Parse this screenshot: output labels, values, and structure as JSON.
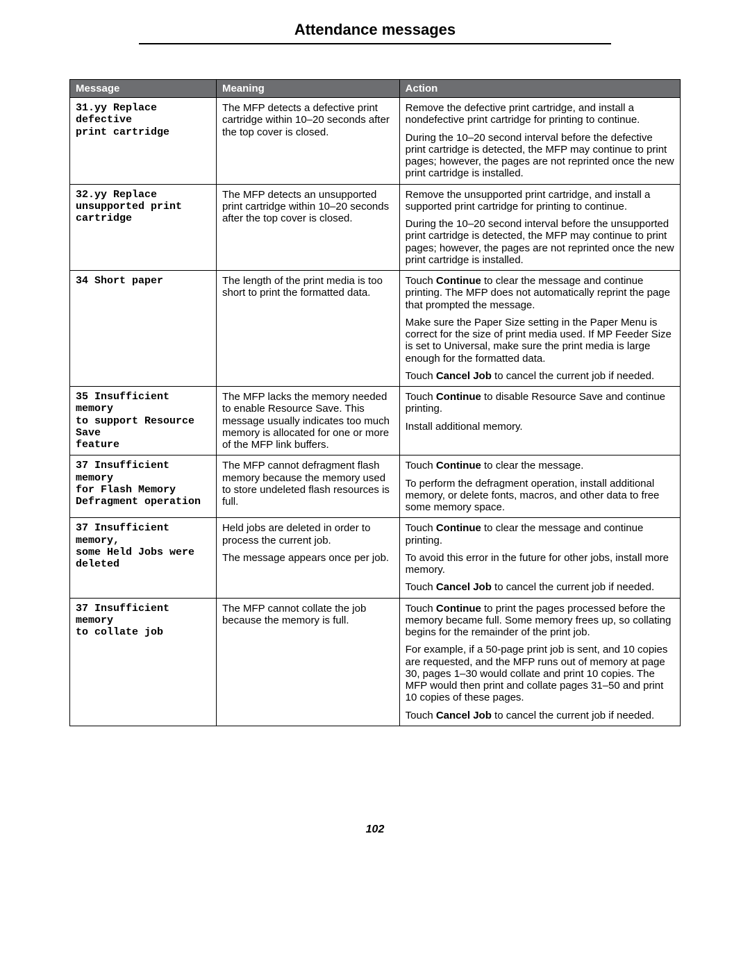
{
  "page_title": "Attendance messages",
  "page_number": "102",
  "headers": {
    "message": "Message",
    "meaning": "Meaning",
    "action": "Action"
  },
  "rows": [
    {
      "message": "31.yy Replace defective\nprint cartridge",
      "meaning": [
        "The MFP detects a defective print cartridge within 10–20 seconds after the top cover is closed."
      ],
      "action": [
        {
          "parts": [
            {
              "t": "Remove the defective print cartridge, and install a nondefective print cartridge for printing to continue."
            }
          ]
        },
        {
          "parts": [
            {
              "t": "During the 10–20 second interval before the defective print cartridge is detected, the MFP may continue to print pages; however, the pages are not reprinted once the new print cartridge is installed."
            }
          ]
        }
      ]
    },
    {
      "message": "32.yy Replace\nunsupported print\ncartridge",
      "meaning": [
        "The MFP detects an unsupported print cartridge within 10–20 seconds after the top cover is closed."
      ],
      "action": [
        {
          "parts": [
            {
              "t": "Remove the unsupported print cartridge, and install a supported print cartridge for printing to continue."
            }
          ]
        },
        {
          "parts": [
            {
              "t": "During the 10–20 second interval before the unsupported print cartridge is detected, the MFP may continue to print pages; however, the pages are not reprinted once the new print cartridge is installed."
            }
          ]
        }
      ]
    },
    {
      "message": "34 Short paper",
      "meaning": [
        "The length of the print media is too short to print the formatted data."
      ],
      "action": [
        {
          "parts": [
            {
              "t": "Touch "
            },
            {
              "t": "Continue",
              "b": true
            },
            {
              "t": " to clear the message and continue printing. The MFP does not automatically reprint the page that prompted the message."
            }
          ]
        },
        {
          "parts": [
            {
              "t": "Make sure the Paper Size setting in the Paper Menu is correct for the size of print media used. If MP Feeder Size is set to Universal, make sure the print media is large enough for the formatted data."
            }
          ]
        },
        {
          "parts": [
            {
              "t": "Touch "
            },
            {
              "t": "Cancel Job",
              "b": true
            },
            {
              "t": " to cancel the current job if needed."
            }
          ]
        }
      ]
    },
    {
      "message": "35 Insufficient memory\nto support Resource Save\nfeature",
      "meaning": [
        "The MFP lacks the memory needed to enable Resource Save. This message usually indicates too much memory is allocated for one or more of the MFP link buffers."
      ],
      "action": [
        {
          "parts": [
            {
              "t": "Touch "
            },
            {
              "t": "Continue",
              "b": true
            },
            {
              "t": " to disable Resource Save and continue printing."
            }
          ]
        },
        {
          "parts": [
            {
              "t": "Install additional memory."
            }
          ]
        }
      ]
    },
    {
      "message": "37 Insufficient memory\nfor Flash Memory\nDefragment operation",
      "meaning": [
        "The MFP cannot defragment flash memory because the memory used to store undeleted flash resources is full."
      ],
      "action": [
        {
          "parts": [
            {
              "t": "Touch "
            },
            {
              "t": "Continue",
              "b": true
            },
            {
              "t": " to clear the message."
            }
          ]
        },
        {
          "parts": [
            {
              "t": "To perform the defragment operation, install additional memory, or delete fonts, macros, and other data to free some memory space."
            }
          ]
        }
      ]
    },
    {
      "message": "37 Insufficient memory,\nsome Held Jobs were\ndeleted",
      "meaning": [
        "Held jobs are deleted in order to process the current job.",
        "The message appears once per job."
      ],
      "action": [
        {
          "parts": [
            {
              "t": "Touch "
            },
            {
              "t": "Continue",
              "b": true
            },
            {
              "t": " to clear the message and continue printing."
            }
          ]
        },
        {
          "parts": [
            {
              "t": "To avoid this error in the future for other jobs, install more memory."
            }
          ]
        },
        {
          "parts": [
            {
              "t": "Touch "
            },
            {
              "t": "Cancel Job",
              "b": true
            },
            {
              "t": " to cancel the current job if needed."
            }
          ]
        }
      ]
    },
    {
      "message": "37 Insufficient memory\nto collate job",
      "meaning": [
        "The MFP cannot collate the job because the memory is full."
      ],
      "action": [
        {
          "parts": [
            {
              "t": "Touch "
            },
            {
              "t": "Continue",
              "b": true
            },
            {
              "t": " to print the pages processed before the memory became full. Some memory frees up, so collating begins for the remainder of the print job."
            }
          ]
        },
        {
          "parts": [
            {
              "t": "For example, if a 50-page print job is sent, and 10 copies are requested, and the MFP runs out of memory at page 30, pages 1–30 would collate and print 10 copies. The MFP would then print and collate pages 31–50 and print 10 copies of these pages."
            }
          ]
        },
        {
          "parts": [
            {
              "t": "Touch "
            },
            {
              "t": "Cancel Job",
              "b": true
            },
            {
              "t": " to cancel the current job if needed."
            }
          ]
        }
      ]
    }
  ]
}
